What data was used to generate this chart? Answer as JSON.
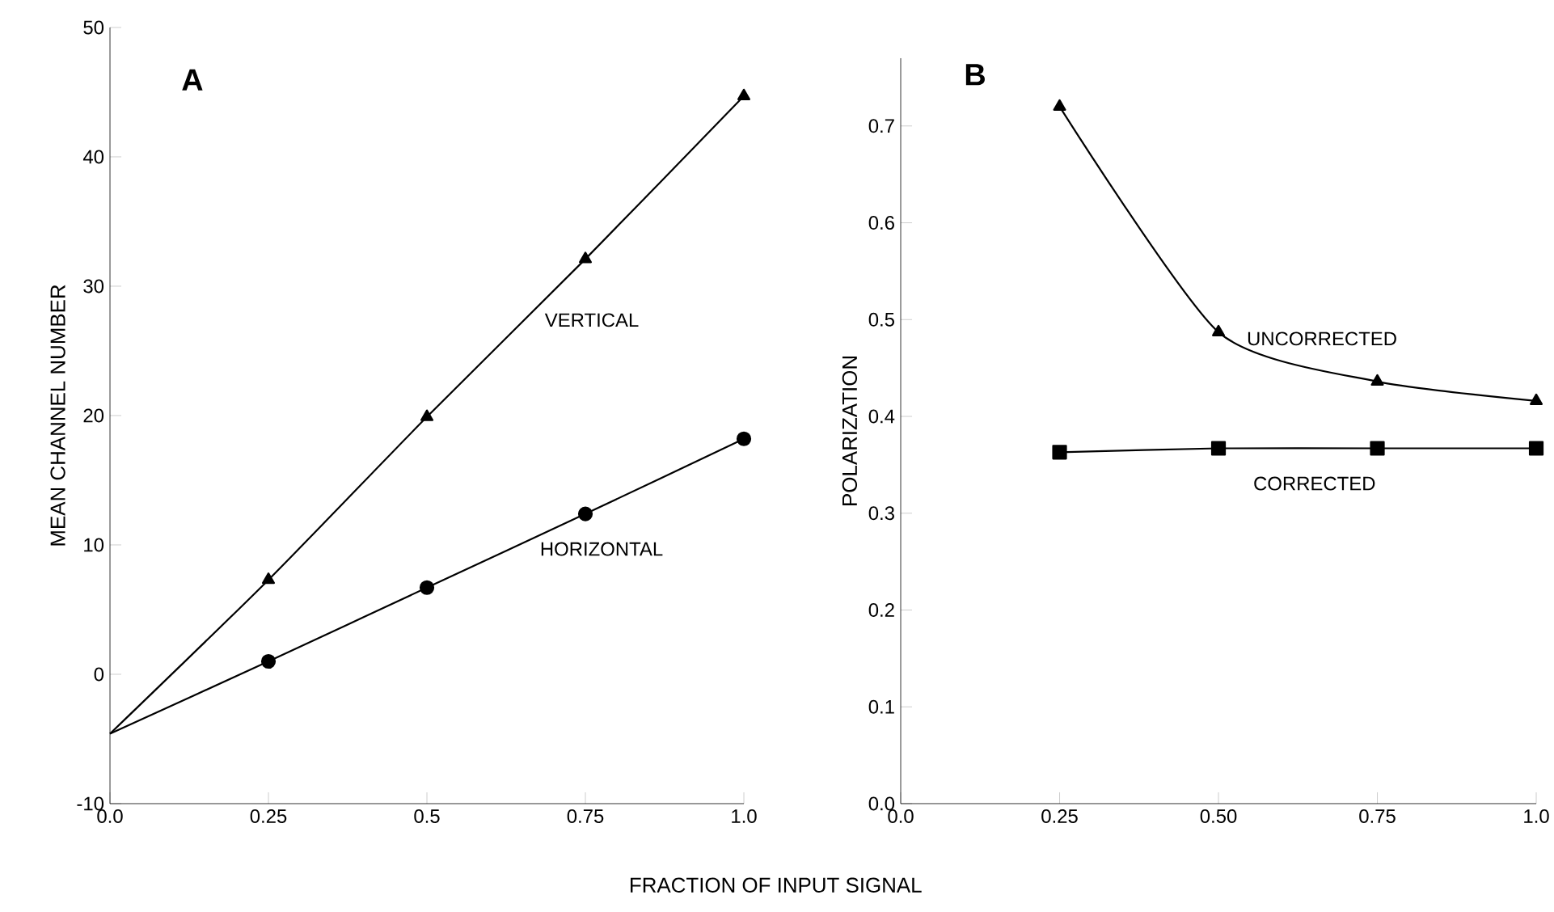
{
  "chart_data": [
    {
      "type": "line",
      "title": "A",
      "xlabel": "FRACTION OF INPUT SIGNAL",
      "ylabel": "MEAN CHANNEL NUMBER",
      "xlim": [
        0,
        1
      ],
      "ylim": [
        -10,
        50
      ],
      "xticks": [
        {
          "value": 0,
          "label": "0.0"
        },
        0.25,
        0.5,
        0.75,
        {
          "value": 1,
          "label": "1.0"
        }
      ],
      "yticks": [
        -10,
        0,
        10,
        20,
        30,
        40,
        50
      ],
      "series": [
        {
          "name": "VERTICAL",
          "color": "#000000",
          "marker": "triangle",
          "x": [
            0,
            0.25,
            0.5,
            0.75,
            1.0
          ],
          "values": [
            -4.6,
            7.3,
            19.9,
            32.1,
            44.7
          ]
        },
        {
          "name": "HORIZONTAL",
          "color": "#000000",
          "marker": "circle",
          "x": [
            0,
            0.25,
            0.5,
            0.75,
            1.0
          ],
          "values": [
            -4.6,
            1.0,
            6.7,
            12.4,
            18.2
          ]
        }
      ]
    },
    {
      "type": "line",
      "title": "B",
      "ylabel": "POLARIZATION",
      "xlim": [
        0,
        1
      ],
      "ylim": [
        0,
        0.77
      ],
      "xticks": [
        {
          "value": 0,
          "label": "0.0"
        },
        0.25,
        {
          "value": 0.5,
          "label": "0.50"
        },
        0.75,
        {
          "value": 1,
          "label": "1.0"
        }
      ],
      "yticks": [
        {
          "value": 0,
          "label": "0.0"
        },
        0.1,
        0.2,
        0.3,
        0.4,
        0.5,
        0.6,
        0.7
      ],
      "series": [
        {
          "name": "UNCORRECTED",
          "color": "#000000",
          "marker": "triangle",
          "x": [
            0.25,
            0.5,
            0.75,
            1.0
          ],
          "values": [
            0.72,
            0.487,
            0.436,
            0.416
          ]
        },
        {
          "name": "CORRECTED",
          "color": "#000000",
          "marker": "square",
          "x": [
            0.25,
            0.5,
            0.75,
            1.0
          ],
          "values": [
            0.363,
            0.367,
            0.367,
            0.367
          ]
        }
      ]
    }
  ]
}
